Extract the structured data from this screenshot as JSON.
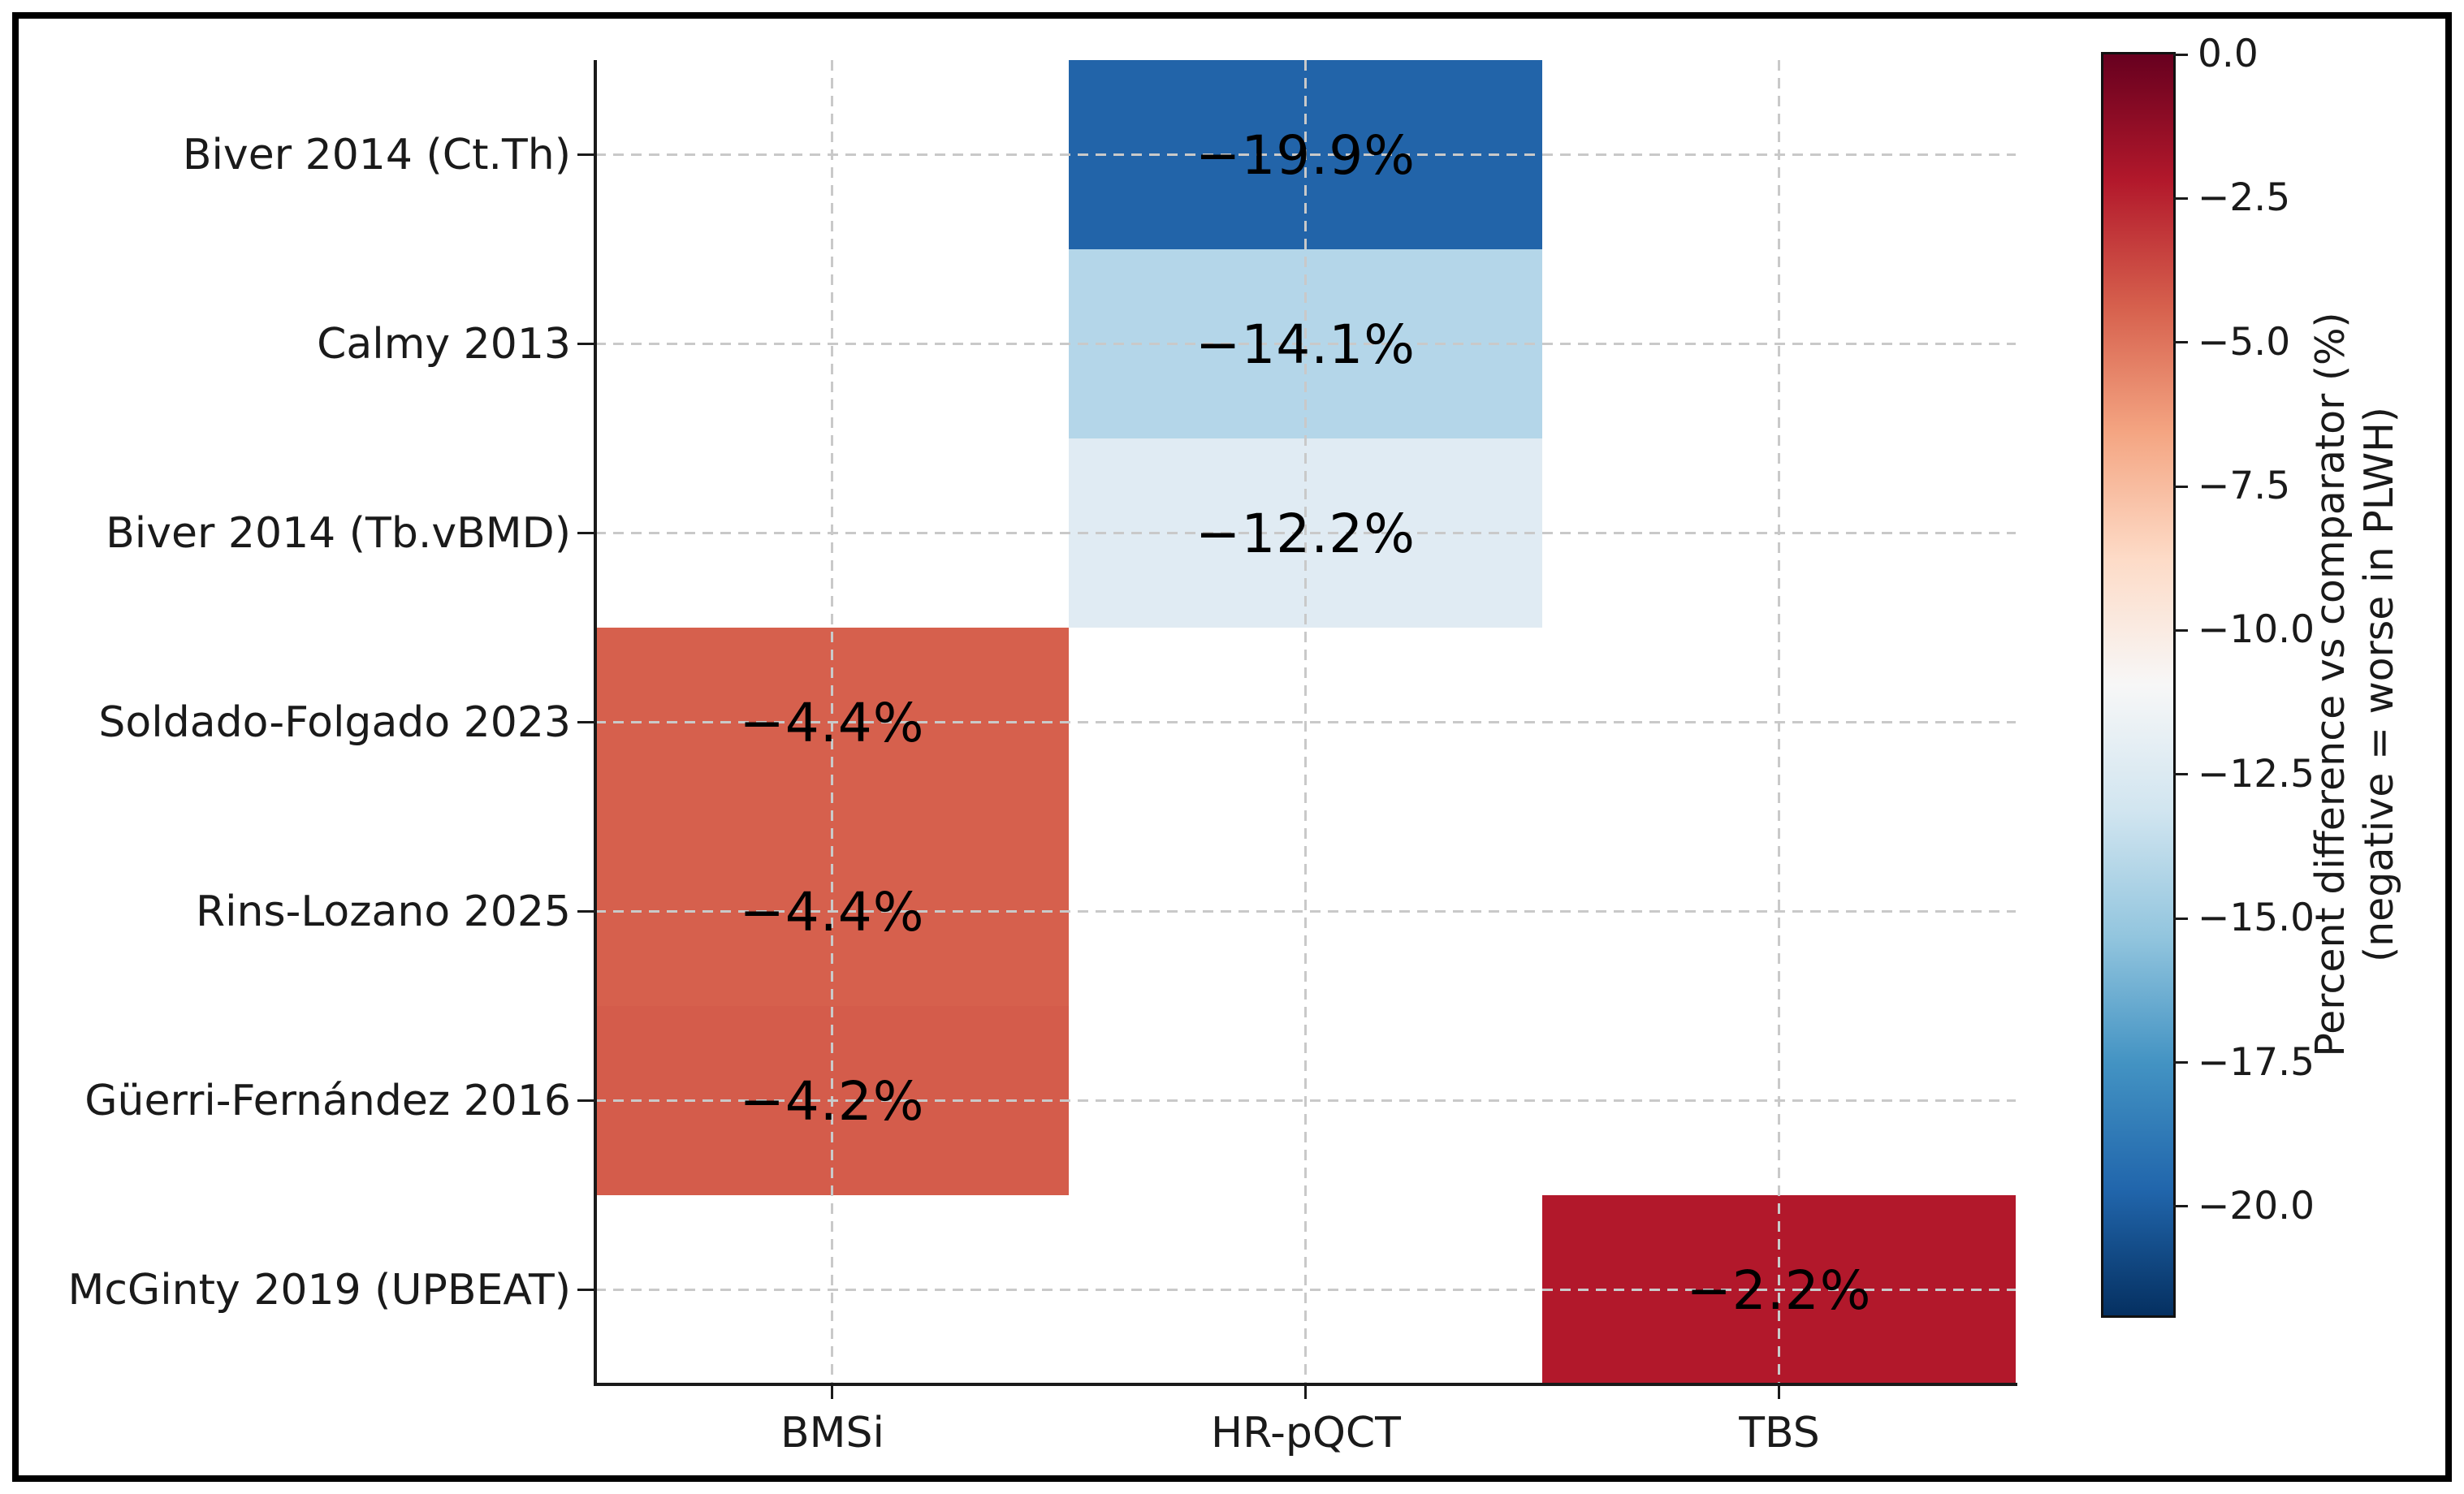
{
  "figure": {
    "background": "#ffffff",
    "border_color": "#000000"
  },
  "chart_data": {
    "type": "heatmap",
    "title": "",
    "xlabel": "",
    "ylabel": "",
    "grid": true,
    "rows": [
      "Biver 2014 (Ct.Th)",
      "Calmy 2013",
      "Biver 2014 (Tb.vBMD)",
      "Soldado-Folgado 2023",
      "Rins-Lozano 2025",
      "Güerri-Fernández 2016",
      "McGinty 2019 (UPBEAT)"
    ],
    "columns": [
      "BMSi",
      "HR-pQCT",
      "TBS"
    ],
    "cells": [
      {
        "row": 0,
        "col": 1,
        "value": -19.9,
        "label": "−19.9%",
        "color": "#2264a9"
      },
      {
        "row": 1,
        "col": 1,
        "value": -14.1,
        "label": "−14.1%",
        "color": "#b4d6e9"
      },
      {
        "row": 2,
        "col": 1,
        "value": -12.2,
        "label": "−12.2%",
        "color": "#e0ebf3"
      },
      {
        "row": 3,
        "col": 0,
        "value": -4.4,
        "label": "−4.4%",
        "color": "#d6604d"
      },
      {
        "row": 4,
        "col": 0,
        "value": -4.4,
        "label": "−4.4%",
        "color": "#d6604d"
      },
      {
        "row": 5,
        "col": 0,
        "value": -4.2,
        "label": "−4.2%",
        "color": "#d45c4b"
      },
      {
        "row": 6,
        "col": 2,
        "value": -2.2,
        "label": "−2.2%",
        "color": "#b2182b"
      }
    ],
    "colorbar": {
      "label_line1": "Percent difference vs comparator (%)",
      "label_line2": "(negative = worse in PLWH)",
      "vmin": -21.89,
      "vmax": 0,
      "ticks": [
        {
          "value": 0,
          "label": "0.0"
        },
        {
          "value": -2.5,
          "label": "−2.5"
        },
        {
          "value": -5,
          "label": "−5.0"
        },
        {
          "value": -7.5,
          "label": "−7.5"
        },
        {
          "value": -10,
          "label": "−10.0"
        },
        {
          "value": -12.5,
          "label": "−12.5"
        },
        {
          "value": -15,
          "label": "−15.0"
        },
        {
          "value": -17.5,
          "label": "−17.5"
        },
        {
          "value": -20,
          "label": "−20.0"
        }
      ],
      "gradient": [
        {
          "pos": 0.0,
          "color": "#67001f"
        },
        {
          "pos": 0.1,
          "color": "#b2182b"
        },
        {
          "pos": 0.2,
          "color": "#d6604d"
        },
        {
          "pos": 0.3,
          "color": "#f4a582"
        },
        {
          "pos": 0.4,
          "color": "#fddbc7"
        },
        {
          "pos": 0.5,
          "color": "#f7f7f7"
        },
        {
          "pos": 0.6,
          "color": "#d1e5f0"
        },
        {
          "pos": 0.7,
          "color": "#92c5de"
        },
        {
          "pos": 0.8,
          "color": "#4393c3"
        },
        {
          "pos": 0.9,
          "color": "#2166ac"
        },
        {
          "pos": 1.0,
          "color": "#053061"
        }
      ]
    }
  }
}
